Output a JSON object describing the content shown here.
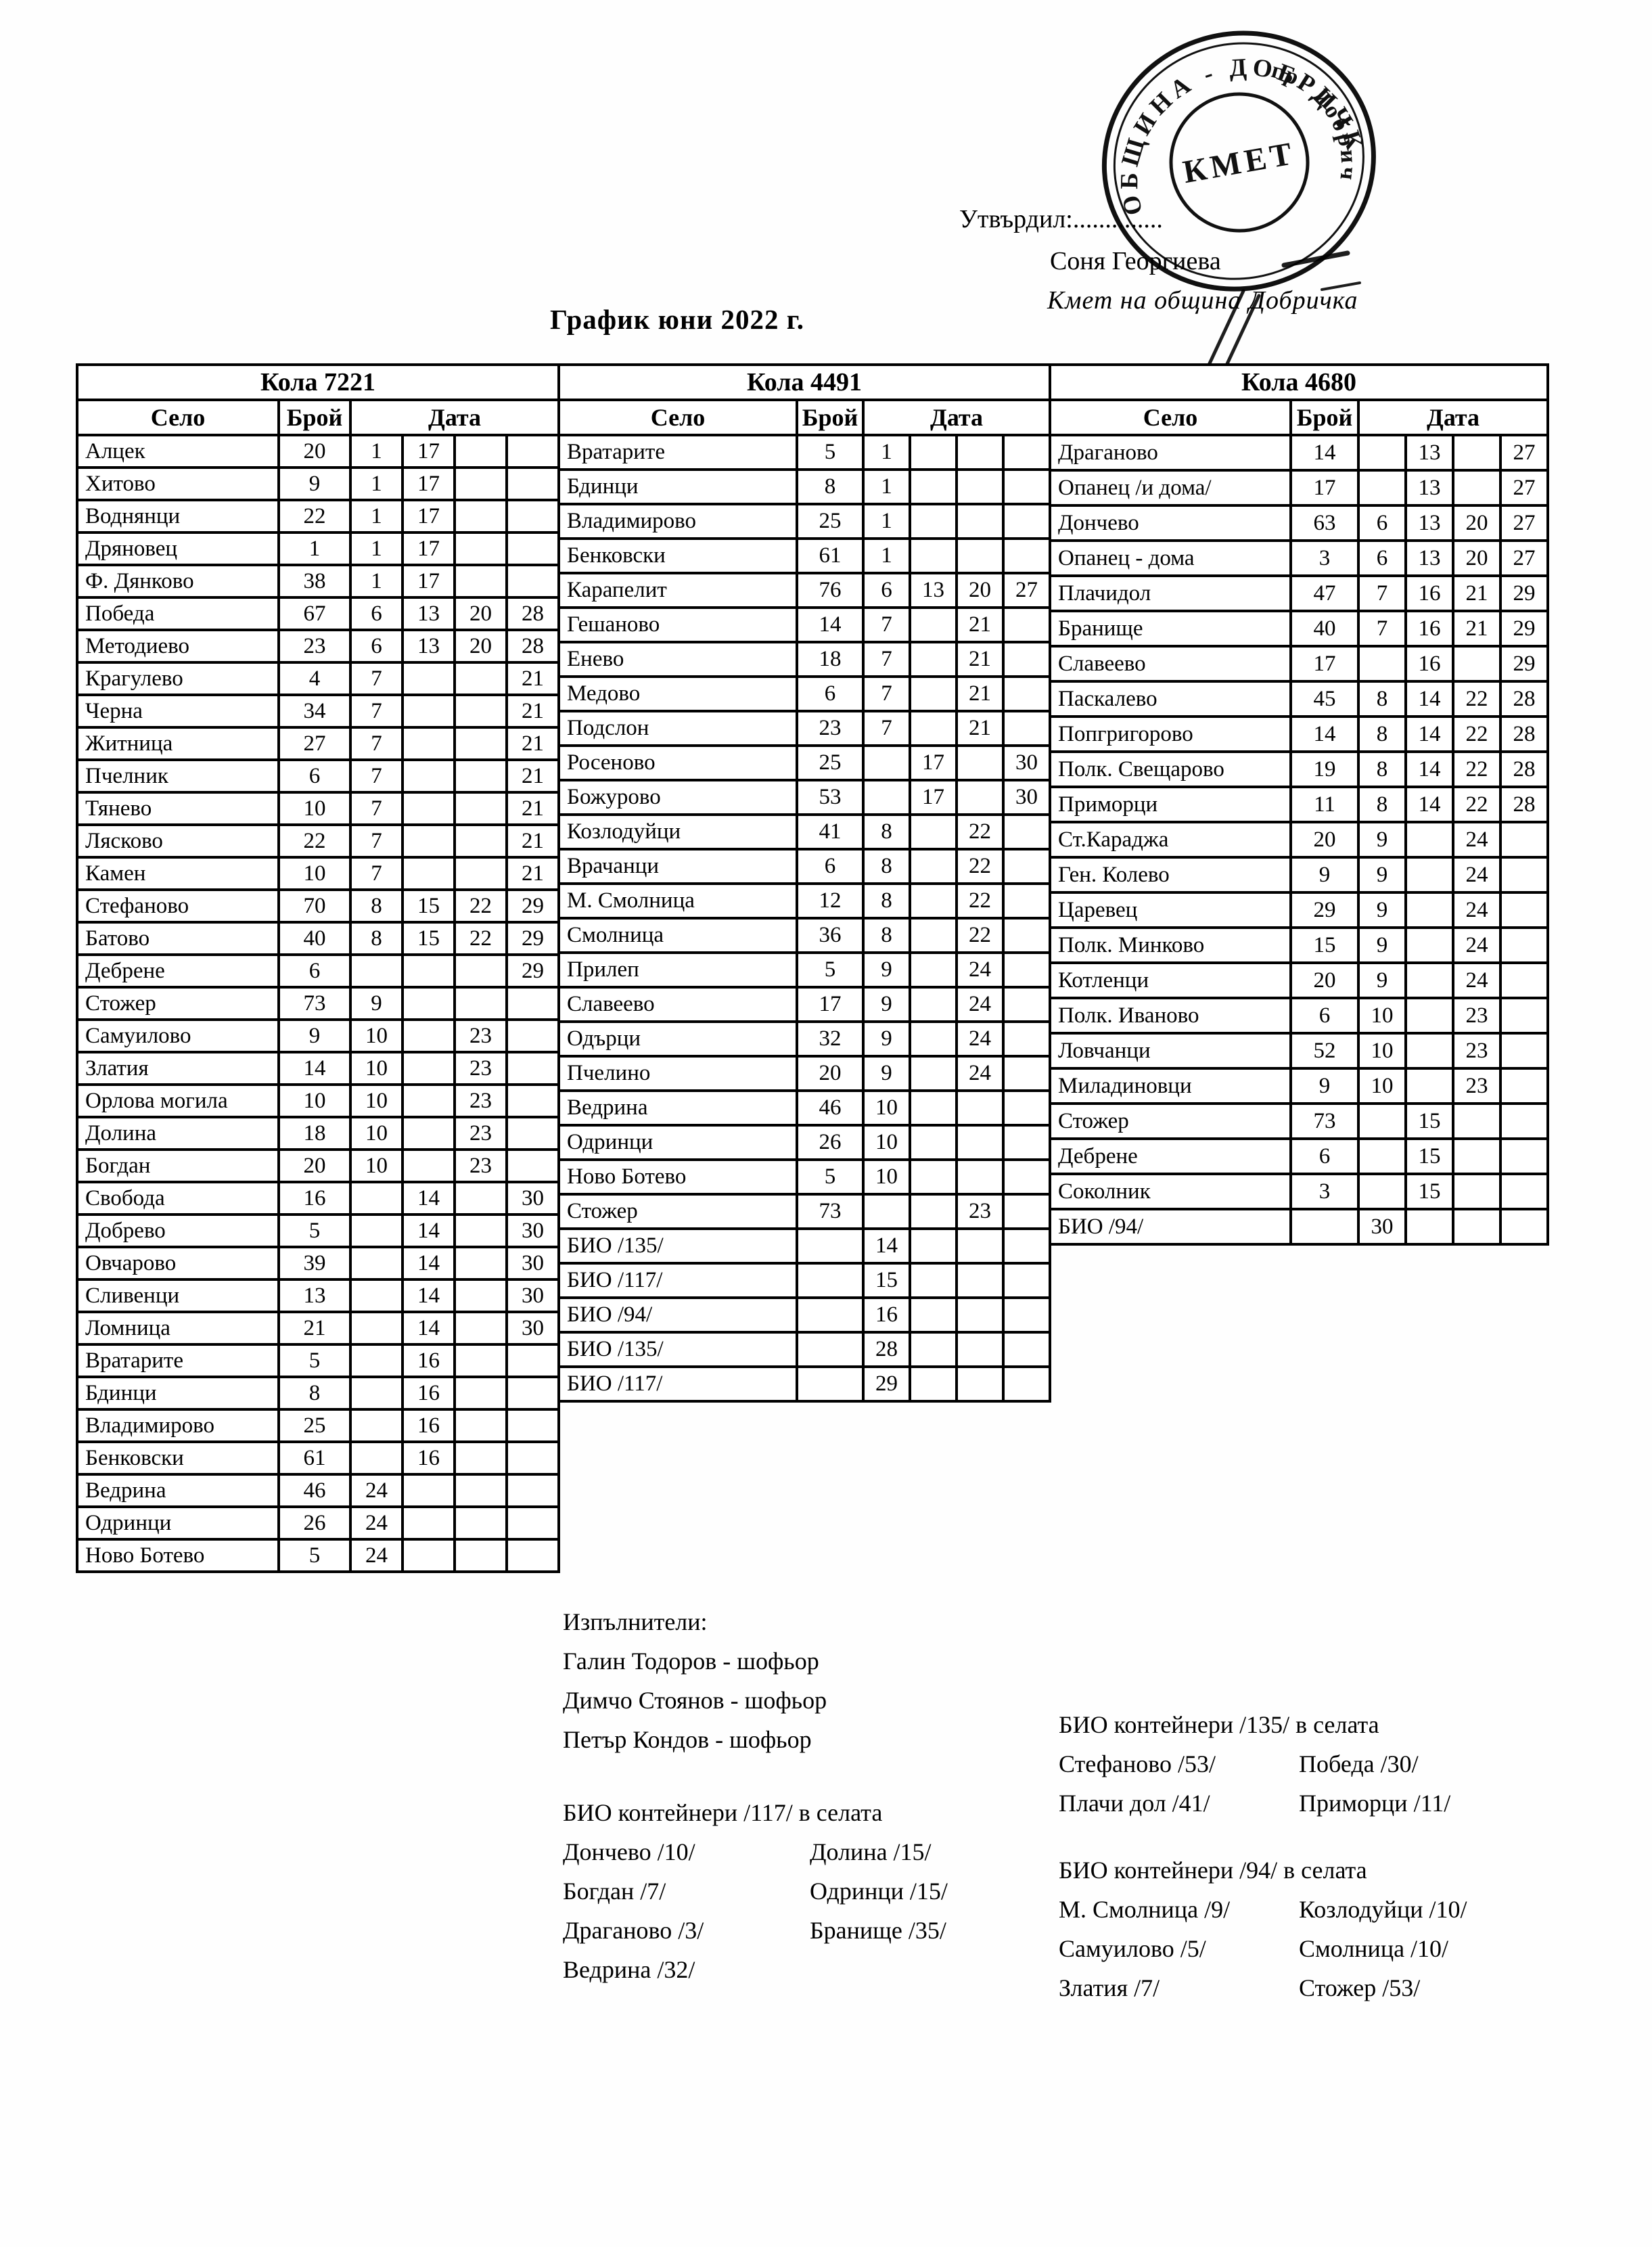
{
  "ink_color": "#000000",
  "approval": {
    "label": "Утвърдил:..............",
    "name": "Соня Георгиева",
    "role": "Кмет  на община Добричка"
  },
  "stamp": {
    "ring_text": "ОБЩИНА - ДОБРИЧКА",
    "ring_text_right": "гр. Добрич",
    "center_text": "КМЕТ"
  },
  "title": "График юни 2022 г.",
  "tables": [
    {
      "car": "Кола 7221",
      "col_village": "Село",
      "col_count": "Брой",
      "col_date": "Дата",
      "rows": [
        [
          "Алцек",
          "20",
          "1",
          "17",
          "",
          ""
        ],
        [
          "Хитово",
          "9",
          "1",
          "17",
          "",
          ""
        ],
        [
          "Воднянци",
          "22",
          "1",
          "17",
          "",
          ""
        ],
        [
          "Дряновец",
          "1",
          "1",
          "17",
          "",
          ""
        ],
        [
          "Ф. Дянково",
          "38",
          "1",
          "17",
          "",
          ""
        ],
        [
          "Победа",
          "67",
          "6",
          "13",
          "20",
          "28"
        ],
        [
          "Методиево",
          "23",
          "6",
          "13",
          "20",
          "28"
        ],
        [
          "Крагулево",
          "4",
          "7",
          "",
          "",
          "21"
        ],
        [
          "Черна",
          "34",
          "7",
          "",
          "",
          "21"
        ],
        [
          "Житница",
          "27",
          "7",
          "",
          "",
          "21"
        ],
        [
          "Пчелник",
          "6",
          "7",
          "",
          "",
          "21"
        ],
        [
          "Тянево",
          "10",
          "7",
          "",
          "",
          "21"
        ],
        [
          "Лясково",
          "22",
          "7",
          "",
          "",
          "21"
        ],
        [
          "Камен",
          "10",
          "7",
          "",
          "",
          "21"
        ],
        [
          "Стефаново",
          "70",
          "8",
          "15",
          "22",
          "29"
        ],
        [
          "Батово",
          "40",
          "8",
          "15",
          "22",
          "29"
        ],
        [
          "Дебрене",
          "6",
          "",
          "",
          "",
          "29"
        ],
        [
          "Стожер",
          "73",
          "9",
          "",
          "",
          ""
        ],
        [
          "Самуилово",
          "9",
          "10",
          "",
          "23",
          ""
        ],
        [
          "Златия",
          "14",
          "10",
          "",
          "23",
          ""
        ],
        [
          "Орлова могила",
          "10",
          "10",
          "",
          "23",
          ""
        ],
        [
          "Долина",
          "18",
          "10",
          "",
          "23",
          ""
        ],
        [
          "Богдан",
          "20",
          "10",
          "",
          "23",
          ""
        ],
        [
          "Свобода",
          "16",
          "",
          "14",
          "",
          "30"
        ],
        [
          "Добрево",
          "5",
          "",
          "14",
          "",
          "30"
        ],
        [
          "Овчарово",
          "39",
          "",
          "14",
          "",
          "30"
        ],
        [
          "Сливенци",
          "13",
          "",
          "14",
          "",
          "30"
        ],
        [
          "Ломница",
          "21",
          "",
          "14",
          "",
          "30"
        ],
        [
          "Вратарите",
          "5",
          "",
          "16",
          "",
          ""
        ],
        [
          "Бдинци",
          "8",
          "",
          "16",
          "",
          ""
        ],
        [
          "Владимирово",
          "25",
          "",
          "16",
          "",
          ""
        ],
        [
          "Бенковски",
          "61",
          "",
          "16",
          "",
          ""
        ],
        [
          "Ведрина",
          "46",
          "24",
          "",
          "",
          ""
        ],
        [
          "Одринци",
          "26",
          "24",
          "",
          "",
          ""
        ],
        [
          "Ново Ботево",
          "5",
          "24",
          "",
          "",
          ""
        ]
      ]
    },
    {
      "car": "Кола 4491",
      "col_village": "Село",
      "col_count": "Брой",
      "col_date": "Дата",
      "rows": [
        [
          "Вратарите",
          "5",
          "1",
          "",
          "",
          ""
        ],
        [
          "Бдинци",
          "8",
          "1",
          "",
          "",
          ""
        ],
        [
          "Владимирово",
          "25",
          "1",
          "",
          "",
          ""
        ],
        [
          "Бенковски",
          "61",
          "1",
          "",
          "",
          ""
        ],
        [
          "Карапелит",
          "76",
          "6",
          "13",
          "20",
          "27"
        ],
        [
          "Гешаново",
          "14",
          "7",
          "",
          "21",
          ""
        ],
        [
          "Енево",
          "18",
          "7",
          "",
          "21",
          ""
        ],
        [
          "Медово",
          "6",
          "7",
          "",
          "21",
          ""
        ],
        [
          "Подслон",
          "23",
          "7",
          "",
          "21",
          ""
        ],
        [
          "Росеново",
          "25",
          "",
          "17",
          "",
          "30"
        ],
        [
          "Божурово",
          "53",
          "",
          "17",
          "",
          "30"
        ],
        [
          "Козлодуйци",
          "41",
          "8",
          "",
          "22",
          ""
        ],
        [
          "Врачанци",
          "6",
          "8",
          "",
          "22",
          ""
        ],
        [
          "М. Смолница",
          "12",
          "8",
          "",
          "22",
          ""
        ],
        [
          "Смолница",
          "36",
          "8",
          "",
          "22",
          ""
        ],
        [
          "Прилеп",
          "5",
          "9",
          "",
          "24",
          ""
        ],
        [
          "Славеево",
          "17",
          "9",
          "",
          "24",
          ""
        ],
        [
          "Одърци",
          "32",
          "9",
          "",
          "24",
          ""
        ],
        [
          "Пчелино",
          "20",
          "9",
          "",
          "24",
          ""
        ],
        [
          "Ведрина",
          "46",
          "10",
          "",
          "",
          ""
        ],
        [
          "Одринци",
          "26",
          "10",
          "",
          "",
          ""
        ],
        [
          "Ново Ботево",
          "5",
          "10",
          "",
          "",
          ""
        ],
        [
          "Стожер",
          "73",
          "",
          "",
          "23",
          ""
        ],
        [
          "БИО /135/",
          "",
          "14",
          "",
          "",
          ""
        ],
        [
          "БИО /117/",
          "",
          "15",
          "",
          "",
          ""
        ],
        [
          "БИО /94/",
          "",
          "16",
          "",
          "",
          ""
        ],
        [
          "БИО /135/",
          "",
          "28",
          "",
          "",
          ""
        ],
        [
          "БИО /117/",
          "",
          "29",
          "",
          "",
          ""
        ]
      ]
    },
    {
      "car": "Кола 4680",
      "col_village": "Село",
      "col_count": "Брой",
      "col_date": "Дата",
      "rows": [
        [
          "Драганово",
          "14",
          "",
          "13",
          "",
          "27"
        ],
        [
          "Опанец /и дома/",
          "17",
          "",
          "13",
          "",
          "27"
        ],
        [
          "Дончево",
          "63",
          "6",
          "13",
          "20",
          "27"
        ],
        [
          "Опанец - дома",
          "3",
          "6",
          "13",
          "20",
          "27"
        ],
        [
          "Плачидол",
          "47",
          "7",
          "16",
          "21",
          "29"
        ],
        [
          "Бранище",
          "40",
          "7",
          "16",
          "21",
          "29"
        ],
        [
          "Славеево",
          "17",
          "",
          "16",
          "",
          "29"
        ],
        [
          "Паскалево",
          "45",
          "8",
          "14",
          "22",
          "28"
        ],
        [
          "Попгригорово",
          "14",
          "8",
          "14",
          "22",
          "28"
        ],
        [
          "Полк. Свещарово",
          "19",
          "8",
          "14",
          "22",
          "28"
        ],
        [
          "Приморци",
          "11",
          "8",
          "14",
          "22",
          "28"
        ],
        [
          "Ст.Караджа",
          "20",
          "9",
          "",
          "24",
          ""
        ],
        [
          "Ген. Колево",
          "9",
          "9",
          "",
          "24",
          ""
        ],
        [
          "Царевец",
          "29",
          "9",
          "",
          "24",
          ""
        ],
        [
          "Полк. Минково",
          "15",
          "9",
          "",
          "24",
          ""
        ],
        [
          "Котленци",
          "20",
          "9",
          "",
          "24",
          ""
        ],
        [
          "Полк. Иваново",
          "6",
          "10",
          "",
          "23",
          ""
        ],
        [
          "Ловчанци",
          "52",
          "10",
          "",
          "23",
          ""
        ],
        [
          "Миладиновци",
          "9",
          "10",
          "",
          "23",
          ""
        ],
        [
          "Стожер",
          "73",
          "",
          "15",
          "",
          ""
        ],
        [
          "Дебрене",
          "6",
          "",
          "15",
          "",
          ""
        ],
        [
          "Соколник",
          "3",
          "",
          "15",
          "",
          ""
        ],
        [
          "БИО /94/",
          "",
          "30",
          "",
          "",
          ""
        ]
      ]
    }
  ],
  "executors": {
    "header": "Изпълнители:",
    "items": [
      "Галин Тодоров - шофьор",
      "Димчо Стоянов - шофьор",
      "Петър Кондов - шофьор"
    ]
  },
  "bio_blocks": [
    {
      "header": "БИО контейнери /135/ в селата",
      "col1": [
        "Стефаново /53/",
        "Плачи дол /41/"
      ],
      "col2": [
        "Победа /30/",
        "Приморци /11/"
      ]
    },
    {
      "header": "БИО контейнери /117/ в селата",
      "col1": [
        "Дончево /10/",
        "Богдан /7/",
        "Драганово /3/",
        "Ведрина /32/"
      ],
      "col2": [
        "Долина /15/",
        "Одринци /15/",
        "Бранище /35/"
      ]
    },
    {
      "header": "БИО контейнери /94/ в селата",
      "col1": [
        "М. Смолница /9/",
        "Самуилово /5/",
        "Златия /7/"
      ],
      "col2": [
        "Козлодуйци /10/",
        "Смолница /10/",
        "Стожер /53/"
      ]
    }
  ]
}
